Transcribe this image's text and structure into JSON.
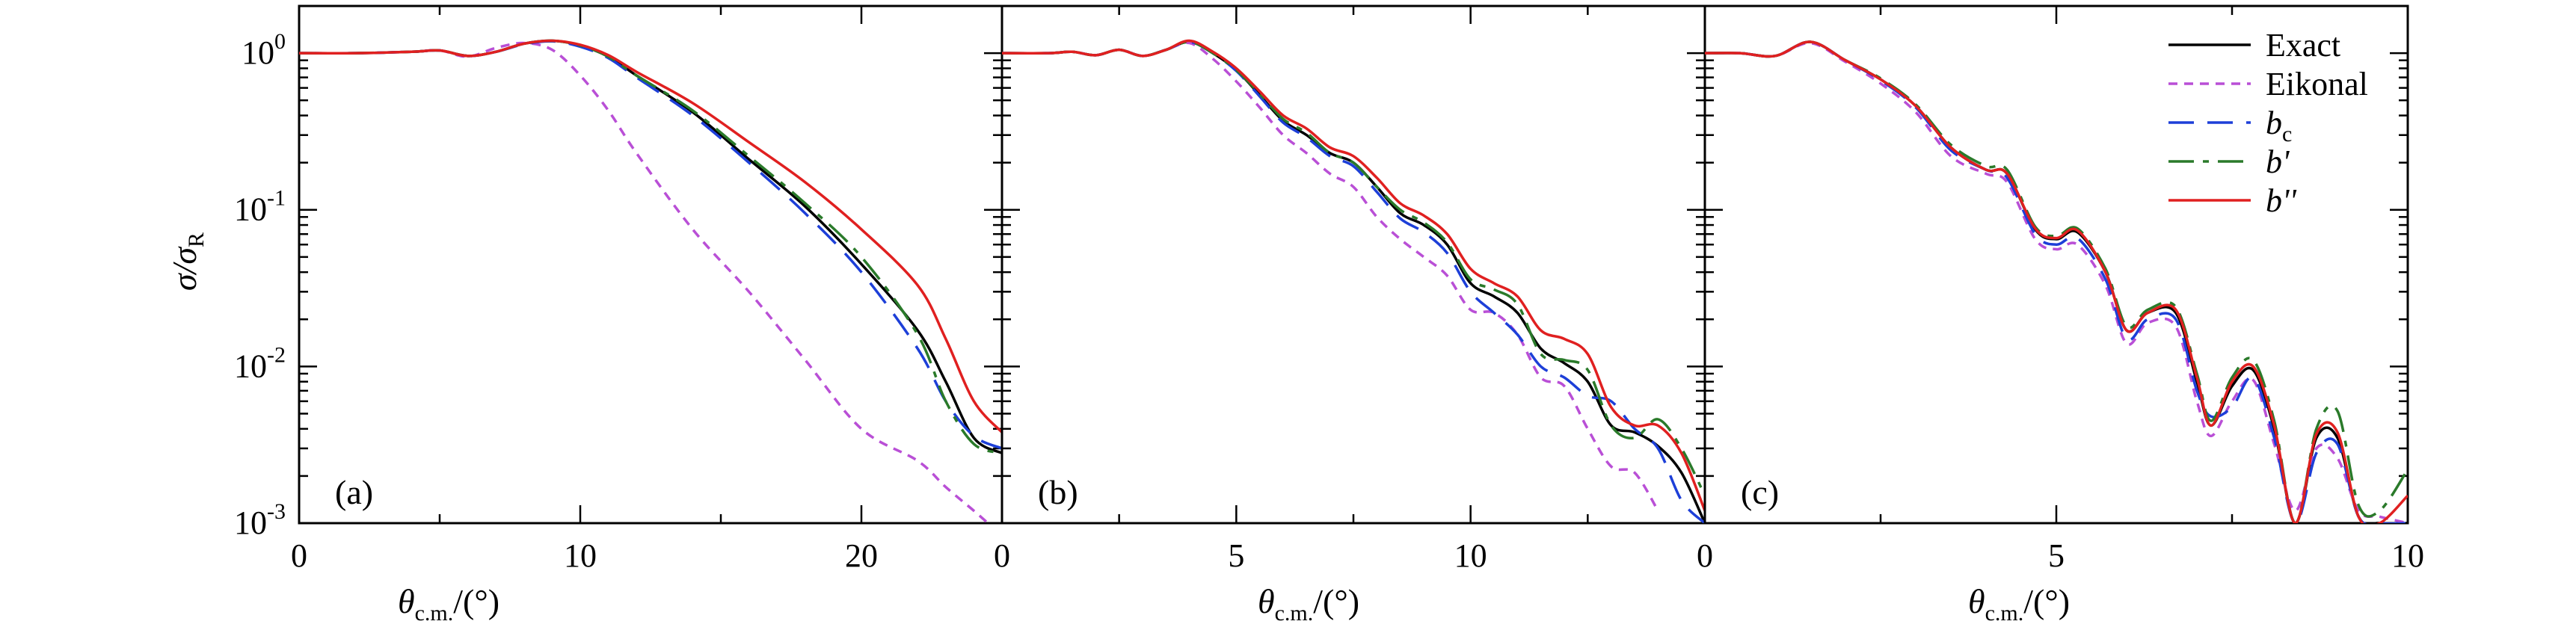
{
  "figure": {
    "ylabel_main": "σ/σ",
    "ylabel_sub": "R",
    "xlabel_main": "θ",
    "xlabel_sub": "c.m.",
    "xlabel_unit": "/(°)"
  },
  "legend": [
    {
      "label": "Exact",
      "sub": "",
      "color": "#000000",
      "dash": "solid"
    },
    {
      "label": "Eikonal",
      "sub": "",
      "color": "#b94fd6",
      "dash": "dotted"
    },
    {
      "label": "b",
      "sub": "c",
      "color": "#1d3fd8",
      "dash": "dashed"
    },
    {
      "label": "b'",
      "sub": "",
      "color": "#2a7a2a",
      "dash": "dashdot"
    },
    {
      "label": "b''",
      "sub": "",
      "color": "#e02020",
      "dash": "solid"
    }
  ],
  "chart_data": [
    {
      "type": "line",
      "panel_label": "(a)",
      "xlim": [
        0,
        25
      ],
      "ylim": [
        0.001,
        2
      ],
      "yscale": "log",
      "xticks": [
        0,
        10,
        20
      ],
      "xticklabels": [
        "0",
        "10",
        "20"
      ],
      "yticks": [
        1,
        0.1,
        0.01,
        0.001
      ],
      "yticklabels": [
        [
          "10",
          "0"
        ],
        [
          "10",
          "-1"
        ],
        [
          "10",
          "-2"
        ],
        [
          "10",
          "-3"
        ]
      ],
      "series": [
        {
          "name": "Exact",
          "x": [
            0,
            2,
            4,
            5,
            6,
            7,
            8,
            9,
            10,
            11,
            12,
            14,
            16,
            18,
            20,
            22,
            23,
            24,
            25
          ],
          "y": [
            1,
            1,
            1.02,
            1.04,
            0.96,
            1.02,
            1.15,
            1.2,
            1.12,
            0.95,
            0.72,
            0.42,
            0.21,
            0.105,
            0.045,
            0.017,
            0.008,
            0.0035,
            0.0028
          ]
        },
        {
          "name": "Eikonal",
          "x": [
            0,
            2,
            4,
            5,
            6,
            7,
            8,
            9,
            10,
            11,
            12,
            14,
            16,
            18,
            20,
            22,
            23,
            24,
            24.5
          ],
          "y": [
            1,
            1,
            1.02,
            1.04,
            0.95,
            1.08,
            1.16,
            1.05,
            0.72,
            0.43,
            0.23,
            0.075,
            0.03,
            0.011,
            0.004,
            0.0025,
            0.0017,
            0.0012,
            0.001
          ]
        },
        {
          "name": "b_c",
          "x": [
            0,
            2,
            4,
            5,
            6,
            7,
            8,
            9,
            10,
            11,
            12,
            14,
            16,
            18,
            20,
            22,
            23,
            24,
            25
          ],
          "y": [
            1,
            1,
            1.02,
            1.04,
            0.96,
            1.02,
            1.14,
            1.19,
            1.1,
            0.93,
            0.7,
            0.4,
            0.2,
            0.095,
            0.04,
            0.013,
            0.006,
            0.0036,
            0.003
          ]
        },
        {
          "name": "b'",
          "x": [
            0,
            2,
            4,
            5,
            6,
            7,
            8,
            9,
            10,
            11,
            12,
            14,
            16,
            18,
            20,
            22,
            23,
            24,
            25
          ],
          "y": [
            1,
            1,
            1.02,
            1.04,
            0.96,
            1.02,
            1.15,
            1.2,
            1.12,
            0.95,
            0.72,
            0.43,
            0.22,
            0.11,
            0.05,
            0.016,
            0.006,
            0.0032,
            0.0028
          ]
        },
        {
          "name": "b''",
          "x": [
            0,
            2,
            4,
            5,
            6,
            7,
            8,
            9,
            10,
            11,
            12,
            14,
            16,
            18,
            20,
            22,
            23,
            24,
            25
          ],
          "y": [
            1,
            1,
            1.02,
            1.04,
            0.96,
            1.02,
            1.15,
            1.2,
            1.13,
            0.97,
            0.76,
            0.48,
            0.27,
            0.15,
            0.075,
            0.033,
            0.015,
            0.006,
            0.0038
          ]
        }
      ]
    },
    {
      "type": "line",
      "panel_label": "(b)",
      "xlim": [
        0,
        15
      ],
      "ylim": [
        0.001,
        2
      ],
      "yscale": "log",
      "xticks": [
        0,
        5,
        10
      ],
      "xticklabels": [
        "0",
        "5",
        "10"
      ],
      "yticks": [
        1,
        0.1,
        0.01,
        0.001
      ],
      "yticklabels": [],
      "series": [
        {
          "name": "Exact",
          "x": [
            0,
            1,
            1.5,
            2,
            2.5,
            3,
            3.5,
            4,
            4.5,
            5,
            5.5,
            6,
            6.5,
            7,
            7.5,
            8,
            8.5,
            9,
            9.5,
            10,
            10.5,
            11,
            11.5,
            12,
            12.5,
            13,
            13.5,
            14,
            14.5,
            15
          ],
          "y": [
            1,
            1,
            1.02,
            0.97,
            1.05,
            0.96,
            1.05,
            1.18,
            1.0,
            0.78,
            0.54,
            0.37,
            0.3,
            0.23,
            0.2,
            0.14,
            0.095,
            0.08,
            0.06,
            0.034,
            0.028,
            0.022,
            0.013,
            0.0105,
            0.008,
            0.0042,
            0.0038,
            0.0031,
            0.0021,
            0.001
          ]
        },
        {
          "name": "Eikonal",
          "x": [
            0,
            1,
            1.5,
            2,
            2.5,
            3,
            3.5,
            4,
            4.5,
            5,
            5.5,
            6,
            6.5,
            7,
            7.5,
            8,
            8.5,
            9,
            9.5,
            10,
            10.5,
            11,
            11.5,
            12,
            12.5,
            13,
            13.5,
            14
          ],
          "y": [
            1,
            1,
            1.02,
            0.97,
            1.05,
            0.96,
            1.05,
            1.16,
            0.92,
            0.66,
            0.45,
            0.3,
            0.23,
            0.17,
            0.14,
            0.09,
            0.065,
            0.05,
            0.038,
            0.023,
            0.022,
            0.016,
            0.0085,
            0.0075,
            0.004,
            0.0023,
            0.0021,
            0.0012
          ]
        },
        {
          "name": "b_c",
          "x": [
            0,
            1,
            1.5,
            2,
            2.5,
            3,
            3.5,
            4,
            4.5,
            5,
            5.5,
            6,
            6.5,
            7,
            7.5,
            8,
            8.5,
            9,
            9.5,
            10,
            10.5,
            11,
            11.5,
            12,
            12.5,
            13,
            13.5,
            14,
            14.5,
            15
          ],
          "y": [
            1,
            1,
            1.02,
            0.97,
            1.05,
            0.96,
            1.05,
            1.18,
            1.0,
            0.77,
            0.53,
            0.36,
            0.29,
            0.22,
            0.19,
            0.13,
            0.088,
            0.072,
            0.053,
            0.03,
            0.022,
            0.016,
            0.01,
            0.0085,
            0.0065,
            0.006,
            0.004,
            0.003,
            0.0014,
            0.001
          ]
        },
        {
          "name": "b'",
          "x": [
            0,
            1,
            1.5,
            2,
            2.5,
            3,
            3.5,
            4,
            4.5,
            5,
            5.5,
            6,
            6.5,
            7,
            7.5,
            8,
            8.5,
            9,
            9.5,
            10,
            10.5,
            11,
            11.5,
            12,
            12.5,
            13,
            13.5,
            14,
            14.5,
            15
          ],
          "y": [
            1,
            1,
            1.02,
            0.97,
            1.05,
            0.96,
            1.05,
            1.18,
            1.0,
            0.78,
            0.55,
            0.38,
            0.31,
            0.23,
            0.2,
            0.14,
            0.1,
            0.083,
            0.062,
            0.036,
            0.031,
            0.025,
            0.012,
            0.011,
            0.0095,
            0.0042,
            0.0035,
            0.0046,
            0.003,
            0.0015
          ]
        },
        {
          "name": "b''",
          "x": [
            0,
            1,
            1.5,
            2,
            2.5,
            3,
            3.5,
            4,
            4.5,
            5,
            5.5,
            6,
            6.5,
            7,
            7.5,
            8,
            8.5,
            9,
            9.5,
            10,
            10.5,
            11,
            11.5,
            12,
            12.5,
            13,
            13.5,
            14,
            14.5,
            15
          ],
          "y": [
            1,
            1,
            1.02,
            0.97,
            1.05,
            0.96,
            1.05,
            1.2,
            1.02,
            0.8,
            0.57,
            0.4,
            0.33,
            0.25,
            0.22,
            0.16,
            0.11,
            0.092,
            0.07,
            0.042,
            0.034,
            0.028,
            0.017,
            0.015,
            0.012,
            0.0055,
            0.0042,
            0.0042,
            0.0028,
            0.0012
          ]
        }
      ]
    },
    {
      "type": "line",
      "panel_label": "(c)",
      "xlim": [
        0,
        10
      ],
      "ylim": [
        0.001,
        2
      ],
      "yscale": "log",
      "xticks": [
        0,
        5,
        10
      ],
      "xticklabels": [
        "0",
        "5",
        "10"
      ],
      "yticks": [
        1,
        0.1,
        0.01,
        0.001
      ],
      "yticklabels": [],
      "series": [
        {
          "name": "Exact",
          "x": [
            0,
            0.5,
            1,
            1.5,
            2,
            2.5,
            3,
            3.5,
            4,
            4.3,
            4.7,
            5,
            5.3,
            5.7,
            6,
            6.3,
            6.7,
            7,
            7.2,
            7.5,
            7.8,
            8.1,
            8.4,
            8.7,
            9,
            9.3,
            9.6,
            10
          ],
          "y": [
            1,
            1,
            0.96,
            1.18,
            0.9,
            0.68,
            0.46,
            0.25,
            0.18,
            0.17,
            0.075,
            0.065,
            0.072,
            0.04,
            0.017,
            0.022,
            0.022,
            0.008,
            0.0042,
            0.0075,
            0.0095,
            0.004,
            0.001,
            0.0035,
            0.0035,
            0.0011,
            0.001,
            0.001
          ]
        },
        {
          "name": "Eikonal",
          "x": [
            0,
            0.5,
            1,
            1.5,
            2,
            2.5,
            3,
            3.5,
            4,
            4.3,
            4.7,
            5,
            5.3,
            5.7,
            6,
            6.3,
            6.7,
            7,
            7.2,
            7.5,
            7.8,
            8.1,
            8.4,
            8.7,
            9,
            9.3,
            9.6,
            10
          ],
          "y": [
            1,
            1,
            0.96,
            1.16,
            0.88,
            0.64,
            0.42,
            0.22,
            0.17,
            0.15,
            0.065,
            0.056,
            0.06,
            0.033,
            0.014,
            0.019,
            0.018,
            0.006,
            0.0036,
            0.006,
            0.0082,
            0.0032,
            0.0012,
            0.003,
            0.0026,
            0.0012,
            0.0011,
            0.001
          ]
        },
        {
          "name": "b_c",
          "x": [
            0,
            0.5,
            1,
            1.5,
            2,
            2.5,
            3,
            3.5,
            4,
            4.3,
            4.7,
            5,
            5.3,
            5.7,
            6,
            6.3,
            6.7,
            7,
            7.2,
            7.5,
            7.8,
            8.1,
            8.4,
            8.7,
            9,
            9.3,
            9.6,
            10
          ],
          "y": [
            1,
            1,
            0.96,
            1.18,
            0.9,
            0.67,
            0.45,
            0.24,
            0.18,
            0.16,
            0.07,
            0.06,
            0.066,
            0.036,
            0.015,
            0.02,
            0.02,
            0.007,
            0.0048,
            0.0055,
            0.0085,
            0.0035,
            0.001,
            0.0028,
            0.0032,
            0.0011,
            0.001,
            0.001
          ]
        },
        {
          "name": "b'",
          "x": [
            0,
            0.5,
            1,
            1.5,
            2,
            2.5,
            3,
            3.5,
            4,
            4.3,
            4.7,
            5,
            5.3,
            5.7,
            6,
            6.3,
            6.7,
            7,
            7.2,
            7.5,
            7.8,
            8.1,
            8.4,
            8.7,
            9,
            9.3,
            9.6,
            10
          ],
          "y": [
            1,
            1,
            0.96,
            1.18,
            0.9,
            0.69,
            0.47,
            0.26,
            0.19,
            0.18,
            0.078,
            0.068,
            0.076,
            0.042,
            0.018,
            0.023,
            0.024,
            0.009,
            0.0045,
            0.0085,
            0.011,
            0.0045,
            0.001,
            0.004,
            0.0052,
            0.0013,
            0.0012,
            0.0022
          ]
        },
        {
          "name": "b''",
          "x": [
            0,
            0.5,
            1,
            1.5,
            2,
            2.5,
            3,
            3.5,
            4,
            4.3,
            4.7,
            5,
            5.3,
            5.7,
            6,
            6.3,
            6.7,
            7,
            7.2,
            7.5,
            7.8,
            8.1,
            8.4,
            8.7,
            9,
            9.3,
            9.6,
            10
          ],
          "y": [
            1,
            1,
            0.96,
            1.18,
            0.9,
            0.68,
            0.46,
            0.25,
            0.18,
            0.17,
            0.076,
            0.066,
            0.074,
            0.04,
            0.017,
            0.022,
            0.023,
            0.0085,
            0.0042,
            0.008,
            0.01,
            0.0042,
            0.001,
            0.0037,
            0.0038,
            0.0011,
            0.001,
            0.0015
          ]
        }
      ]
    }
  ]
}
